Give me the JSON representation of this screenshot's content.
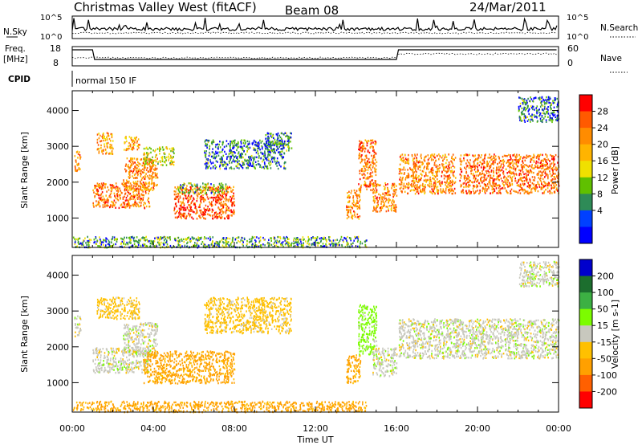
{
  "header": {
    "title": "Christmas Valley West (fitACF)",
    "beam": "Beam 08",
    "date": "24/Mar/2011"
  },
  "panels": {
    "nsky": {
      "left_label": "N.Sky",
      "right_label": "N.Search",
      "left_ticks": [
        "10^5",
        "10^0"
      ],
      "right_ticks": [
        "10^5",
        "10^0"
      ]
    },
    "freq": {
      "left_label_top": "Freq.",
      "left_label_bottom": "[MHz]",
      "right_label": "Nave",
      "left_ticks": [
        "18",
        "8"
      ],
      "right_ticks": [
        "60",
        "0"
      ]
    },
    "cpid": {
      "label": "CPID",
      "value": "normal 150 IF"
    }
  },
  "chart_data": [
    {
      "type": "heatmap",
      "name": "power",
      "xlabel": "",
      "ylabel": "Slant Range [km]",
      "x_ticks": [
        "00:00",
        "04:00",
        "08:00",
        "12:00",
        "16:00",
        "20:00",
        "00:00"
      ],
      "y_ticks": [
        4000,
        3000,
        2000,
        1000
      ],
      "ylim": [
        180,
        4550
      ],
      "colorbar": {
        "label": "Power [dB]",
        "ticks": [
          28,
          24,
          20,
          16,
          12,
          8,
          4
        ],
        "colors": [
          "#ff0000",
          "#ff5a00",
          "#ff8c00",
          "#ffb400",
          "#f0e000",
          "#60c000",
          "#2e8b57",
          "#0040ff",
          "#0000ff"
        ]
      },
      "blobs": [
        {
          "t0": 0.1,
          "t1": 0.4,
          "r0": 2300,
          "r1": 2900,
          "v": 22
        },
        {
          "t0": 1.2,
          "t1": 2.0,
          "r0": 2800,
          "r1": 3400,
          "v": 20
        },
        {
          "t0": 2.5,
          "t1": 3.3,
          "r0": 2900,
          "r1": 3300,
          "v": 20
        },
        {
          "t0": 1.0,
          "t1": 3.8,
          "r0": 1300,
          "r1": 2000,
          "v": 24
        },
        {
          "t0": 2.5,
          "t1": 4.2,
          "r0": 1800,
          "r1": 2700,
          "v": 22
        },
        {
          "t0": 3.5,
          "t1": 5.0,
          "r0": 2500,
          "r1": 3000,
          "v": 14
        },
        {
          "t0": 5.0,
          "t1": 8.0,
          "r0": 1000,
          "r1": 1900,
          "v": 26
        },
        {
          "t0": 5.2,
          "t1": 7.6,
          "r0": 1700,
          "r1": 2000,
          "v": 10
        },
        {
          "t0": 6.5,
          "t1": 10.5,
          "r0": 2400,
          "r1": 3200,
          "v": 6
        },
        {
          "t0": 9.5,
          "t1": 10.8,
          "r0": 2900,
          "r1": 3400,
          "v": 6
        },
        {
          "t0": 13.5,
          "t1": 14.2,
          "r0": 1000,
          "r1": 1800,
          "v": 22
        },
        {
          "t0": 14.1,
          "t1": 15.0,
          "r0": 1800,
          "r1": 3200,
          "v": 24
        },
        {
          "t0": 14.8,
          "t1": 16.0,
          "r0": 1200,
          "r1": 2000,
          "v": 22
        },
        {
          "t0": 16.1,
          "t1": 18.9,
          "r0": 1700,
          "r1": 2800,
          "v": 22
        },
        {
          "t0": 19.1,
          "t1": 24.0,
          "r0": 1700,
          "r1": 2800,
          "v": 24
        },
        {
          "t0": 22.0,
          "t1": 24.0,
          "r0": 3700,
          "r1": 4400,
          "v": 6
        },
        {
          "t0": 0.0,
          "t1": 14.5,
          "r0": 200,
          "r1": 500,
          "v": 8
        }
      ]
    },
    {
      "type": "heatmap",
      "name": "velocity",
      "xlabel": "Time UT",
      "ylabel": "Slant Range [km]",
      "x_ticks": [
        "00:00",
        "04:00",
        "08:00",
        "12:00",
        "16:00",
        "20:00",
        "00:00"
      ],
      "y_ticks": [
        4000,
        3000,
        2000,
        1000
      ],
      "ylim": [
        180,
        4550
      ],
      "colorbar": {
        "label": "Velocity [m s-1]",
        "ticks": [
          200,
          100,
          50,
          15,
          -15,
          -50,
          -100,
          -200
        ],
        "colors": [
          "#0000cd",
          "#1c6e2e",
          "#3cb043",
          "#7cfc00",
          "#c8c8be",
          "#ffc000",
          "#ffa000",
          "#ff6000",
          "#ff0000"
        ]
      },
      "blobs": [
        {
          "t0": 0.1,
          "t1": 0.4,
          "r0": 2300,
          "r1": 2900,
          "v": 0
        },
        {
          "t0": 1.2,
          "t1": 3.3,
          "r0": 2800,
          "r1": 3400,
          "v": -30
        },
        {
          "t0": 1.0,
          "t1": 3.8,
          "r0": 1300,
          "r1": 2000,
          "v": 0
        },
        {
          "t0": 2.5,
          "t1": 4.2,
          "r0": 1800,
          "r1": 2700,
          "v": 0
        },
        {
          "t0": 3.5,
          "t1": 8.0,
          "r0": 1000,
          "r1": 1900,
          "v": -60
        },
        {
          "t0": 6.5,
          "t1": 10.8,
          "r0": 2400,
          "r1": 3400,
          "v": -30
        },
        {
          "t0": 13.5,
          "t1": 14.2,
          "r0": 1000,
          "r1": 1800,
          "v": -60
        },
        {
          "t0": 14.1,
          "t1": 15.0,
          "r0": 1800,
          "r1": 3200,
          "v": 30
        },
        {
          "t0": 14.8,
          "t1": 16.0,
          "r0": 1200,
          "r1": 2000,
          "v": 0
        },
        {
          "t0": 16.1,
          "t1": 24.0,
          "r0": 1700,
          "r1": 2800,
          "v": 0
        },
        {
          "t0": 22.0,
          "t1": 24.0,
          "r0": 3700,
          "r1": 4400,
          "v": 0
        },
        {
          "t0": 0.0,
          "t1": 14.5,
          "r0": 200,
          "r1": 500,
          "v": -60
        }
      ]
    }
  ]
}
